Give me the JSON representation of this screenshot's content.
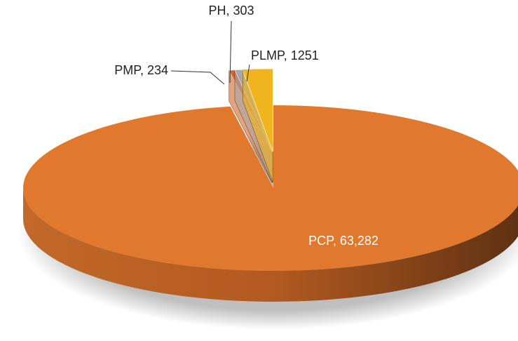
{
  "chart_data": {
    "type": "pie",
    "value_labels": [
      "PCP, 63,282",
      "PMP, 234",
      "PH, 303",
      "PLMP, 1251"
    ],
    "values": [
      63282,
      234,
      303,
      1251
    ],
    "colors": [
      "#e0782e",
      "#d2642a",
      "#a8a8a8",
      "#f0b41c"
    ]
  }
}
